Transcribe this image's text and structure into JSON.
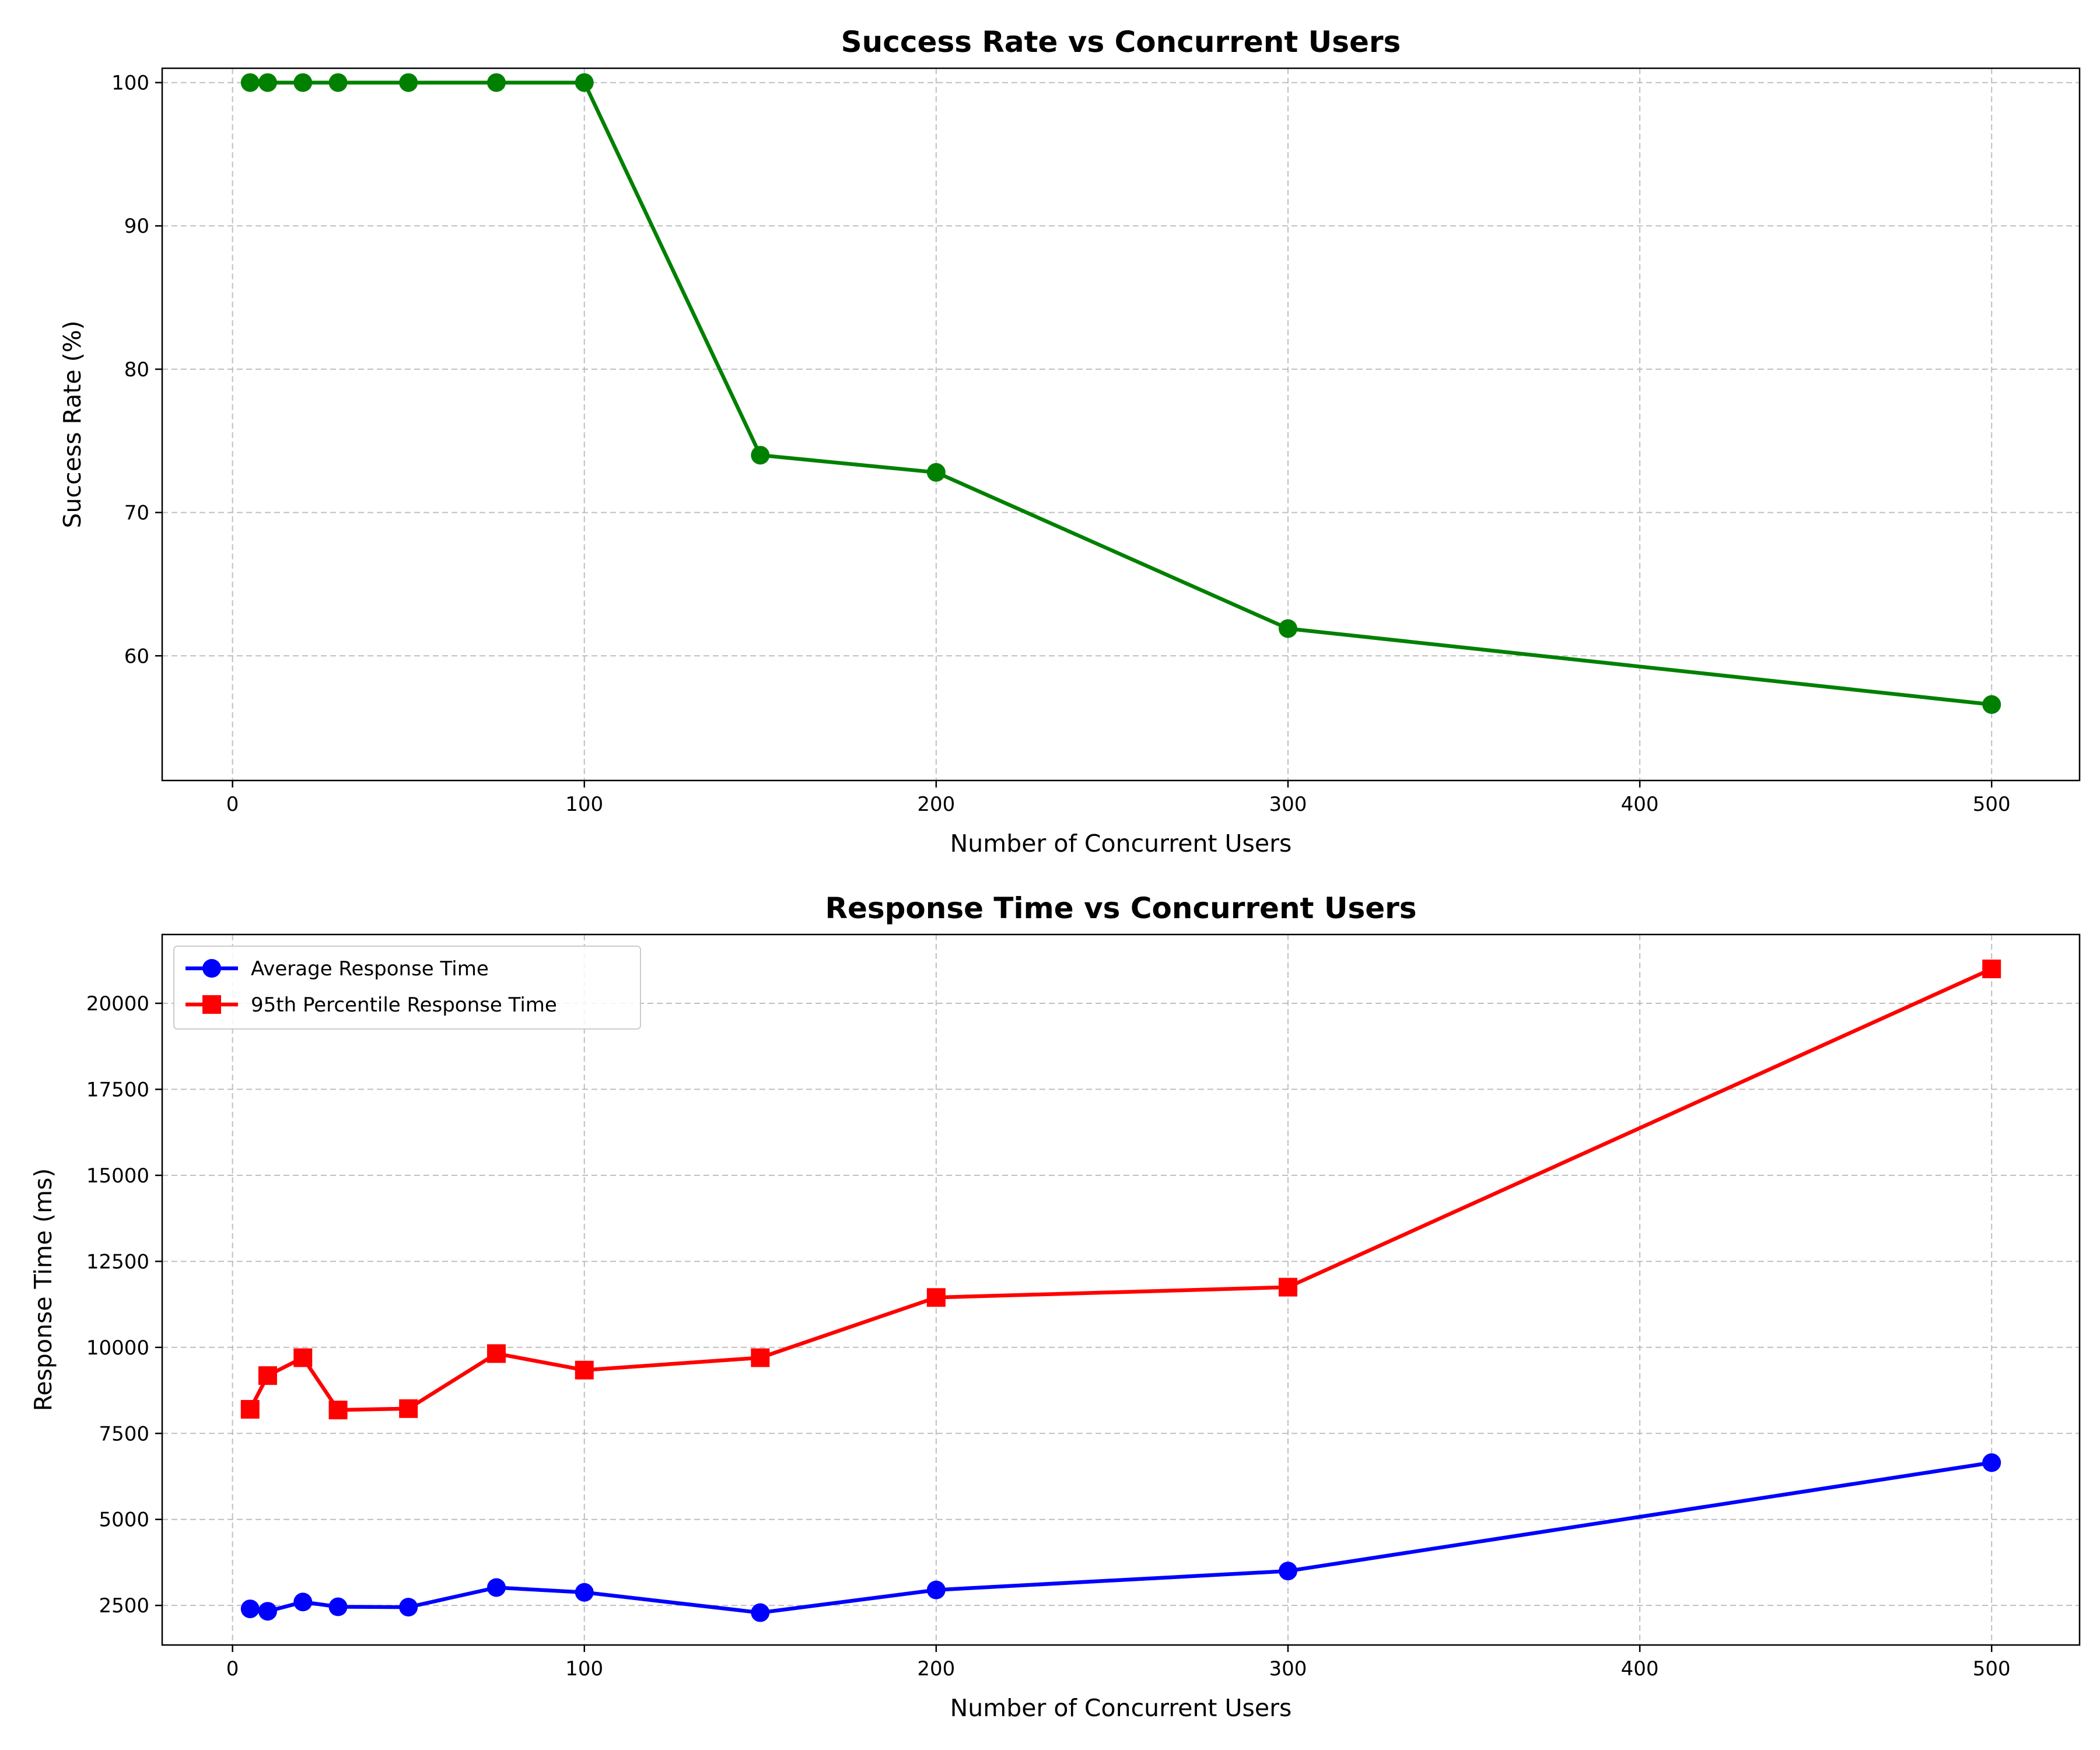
{
  "chart_data": [
    {
      "type": "line",
      "title": "Success Rate vs Concurrent Users",
      "xlabel": "Number of Concurrent Users",
      "ylabel": "Success Rate (%)",
      "xlim": [
        -20,
        525
      ],
      "ylim": [
        51.3,
        101.0
      ],
      "xticks": [
        0,
        100,
        200,
        300,
        400,
        500
      ],
      "yticks": [
        60,
        70,
        80,
        90,
        100
      ],
      "grid": true,
      "legend": null,
      "series": [
        {
          "color": "#008000",
          "marker": "circle",
          "x": [
            5,
            10,
            20,
            30,
            50,
            75,
            100,
            150,
            200,
            300,
            500
          ],
          "y": [
            100,
            100,
            100,
            100,
            100,
            100,
            100,
            74.0,
            72.8,
            61.9,
            56.6
          ]
        }
      ]
    },
    {
      "type": "line",
      "title": "Response Time vs Concurrent Users",
      "xlabel": "Number of Concurrent Users",
      "ylabel": "Response Time (ms)",
      "xlim": [
        -20,
        525
      ],
      "ylim": [
        1350,
        22000
      ],
      "xticks": [
        0,
        100,
        200,
        300,
        400,
        500
      ],
      "yticks": [
        2500,
        5000,
        7500,
        10000,
        12500,
        15000,
        17500,
        20000
      ],
      "grid": true,
      "legend": "top-left",
      "series": [
        {
          "name": "Average Response Time",
          "color": "#0000ff",
          "marker": "circle",
          "x": [
            5,
            10,
            20,
            30,
            50,
            75,
            100,
            150,
            200,
            300,
            500
          ],
          "y": [
            2400,
            2330,
            2600,
            2460,
            2450,
            3020,
            2880,
            2290,
            2950,
            3500,
            6650
          ]
        },
        {
          "name": "95th Percentile Response Time",
          "color": "#ff0000",
          "marker": "square",
          "x": [
            5,
            10,
            20,
            30,
            50,
            75,
            100,
            150,
            200,
            300,
            500
          ],
          "y": [
            8200,
            9180,
            9700,
            8180,
            8220,
            9820,
            9340,
            9700,
            11450,
            11750,
            21000
          ]
        }
      ]
    }
  ]
}
